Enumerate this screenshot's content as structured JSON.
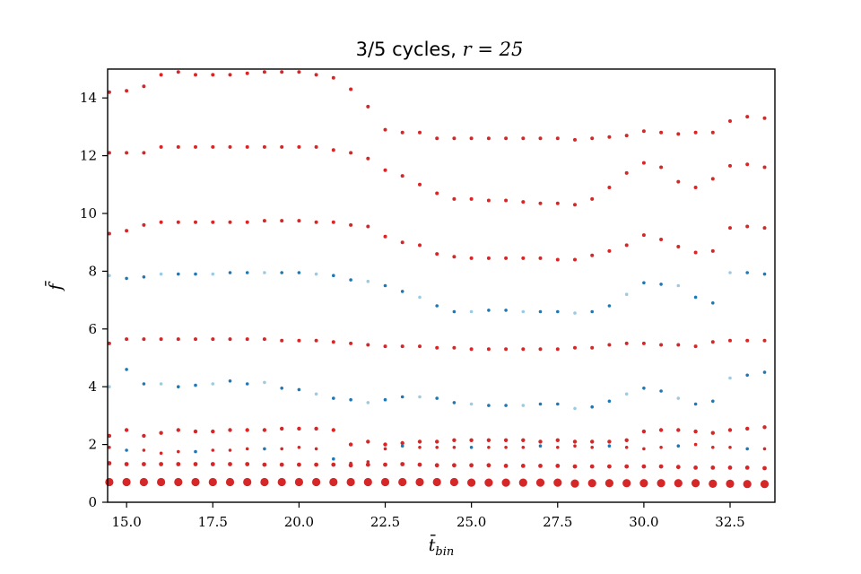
{
  "chart_data": {
    "type": "scatter",
    "title_text": "3/5 cycles, ",
    "title_math": "r = 25",
    "xlabel": "t̄",
    "xlabel_sub": "bin",
    "ylabel": "f̄",
    "xlim": [
      14.45,
      33.8
    ],
    "ylim": [
      0,
      15
    ],
    "xticks": [
      "15.0",
      "17.5",
      "20.0",
      "22.5",
      "25.0",
      "27.5",
      "30.0",
      "32.5"
    ],
    "yticks": [
      "0",
      "2",
      "4",
      "6",
      "8",
      "10",
      "12",
      "14"
    ],
    "grid": false,
    "legend": "none",
    "colors": {
      "high": "#d62728",
      "mid": "#1f77b4",
      "low": "#9ecae1"
    },
    "x": [
      14.5,
      15.0,
      15.5,
      16.0,
      16.5,
      17.0,
      17.5,
      18.0,
      18.5,
      19.0,
      19.5,
      20.0,
      20.5,
      21.0,
      21.5,
      22.0,
      22.5,
      23.0,
      23.5,
      24.0,
      24.5,
      25.0,
      25.5,
      26.0,
      26.5,
      27.0,
      27.5,
      28.0,
      28.5,
      29.0,
      29.5,
      30.0,
      30.5,
      31.0,
      31.5,
      32.0,
      32.5,
      33.0,
      33.5
    ],
    "series": [
      {
        "values": [
          0.7,
          0.7,
          0.7,
          0.7,
          0.7,
          0.7,
          0.7,
          0.7,
          0.7,
          0.7,
          0.7,
          0.7,
          0.7,
          0.7,
          0.7,
          0.7,
          0.7,
          0.7,
          0.7,
          0.7,
          0.7,
          0.68,
          0.68,
          0.68,
          0.68,
          0.68,
          0.68,
          0.65,
          0.66,
          0.66,
          0.66,
          0.66,
          0.66,
          0.66,
          0.66,
          0.64,
          0.64,
          0.63,
          0.63
        ],
        "level": "high",
        "size": 4.6
      },
      {
        "values": [
          1.35,
          1.32,
          1.32,
          1.32,
          1.32,
          1.32,
          1.32,
          1.32,
          1.32,
          1.3,
          1.3,
          1.3,
          1.3,
          1.3,
          1.28,
          1.3,
          1.3,
          1.32,
          1.3,
          1.28,
          1.28,
          1.28,
          1.28,
          1.26,
          1.26,
          1.26,
          1.26,
          1.24,
          1.24,
          1.24,
          1.24,
          1.24,
          1.24,
          1.22,
          1.2,
          1.2,
          1.2,
          1.2,
          1.18
        ],
        "level": "high",
        "size": 2.4
      },
      {
        "values": [
          2.3,
          2.5,
          2.3,
          2.4,
          2.5,
          2.45,
          2.45,
          2.5,
          2.5,
          2.5,
          2.55,
          2.55,
          2.55,
          2.5,
          2.0,
          2.1,
          2.0,
          2.05,
          2.1,
          2.1,
          2.15,
          2.15,
          2.15,
          2.15,
          2.15,
          2.1,
          2.15,
          2.1,
          2.1,
          2.1,
          2.15,
          2.45,
          2.5,
          2.5,
          2.45,
          2.4,
          2.5,
          2.55,
          2.6
        ],
        "level": "high",
        "size": 2.2
      },
      {
        "values": [
          5.5,
          5.65,
          5.65,
          5.65,
          5.65,
          5.65,
          5.65,
          5.65,
          5.65,
          5.65,
          5.6,
          5.6,
          5.6,
          5.55,
          5.5,
          5.45,
          5.4,
          5.4,
          5.4,
          5.35,
          5.35,
          5.3,
          5.3,
          5.3,
          5.3,
          5.3,
          5.3,
          5.35,
          5.35,
          5.45,
          5.5,
          5.5,
          5.45,
          5.45,
          5.4,
          5.55,
          5.6,
          5.6,
          5.6
        ],
        "level": "high",
        "size": 2.0
      },
      {
        "values": [
          7.85,
          7.75,
          7.8,
          7.9,
          7.9,
          7.9,
          7.9,
          7.95,
          7.95,
          7.95,
          7.95,
          7.95,
          7.9,
          7.85,
          7.7,
          7.65,
          7.5,
          7.3,
          7.1,
          6.8,
          6.6,
          6.6,
          6.65,
          6.65,
          6.6,
          6.6,
          6.6,
          6.55,
          6.6,
          6.8,
          7.2,
          7.6,
          7.55,
          7.5,
          7.1,
          6.9,
          7.95,
          7.95,
          7.9
        ],
        "level": "mid",
        "size": 1.8
      },
      {
        "values": [
          9.3,
          9.4,
          9.6,
          9.7,
          9.7,
          9.7,
          9.7,
          9.7,
          9.7,
          9.75,
          9.75,
          9.75,
          9.7,
          9.7,
          9.6,
          9.55,
          9.2,
          9.0,
          8.9,
          8.6,
          8.5,
          8.45,
          8.45,
          8.45,
          8.45,
          8.45,
          8.4,
          8.4,
          8.55,
          8.7,
          8.9,
          9.25,
          9.1,
          8.85,
          8.65,
          8.7,
          9.5,
          9.55,
          9.5
        ],
        "level": "high",
        "size": 2.0
      },
      {
        "values": [
          12.1,
          12.1,
          12.1,
          12.3,
          12.3,
          12.3,
          12.3,
          12.3,
          12.3,
          12.3,
          12.3,
          12.3,
          12.3,
          12.2,
          12.1,
          11.9,
          11.5,
          11.3,
          11.0,
          10.7,
          10.5,
          10.5,
          10.45,
          10.45,
          10.4,
          10.35,
          10.35,
          10.3,
          10.5,
          10.9,
          11.4,
          11.75,
          11.6,
          11.1,
          10.9,
          11.2,
          11.65,
          11.7,
          11.6
        ],
        "level": "high",
        "size": 2.0
      },
      {
        "values": [
          14.2,
          14.25,
          14.4,
          14.8,
          14.9,
          14.8,
          14.8,
          14.8,
          14.85,
          14.9,
          14.9,
          14.9,
          14.8,
          14.7,
          14.3,
          13.7,
          12.9,
          12.8,
          12.8,
          12.6,
          12.6,
          12.6,
          12.6,
          12.6,
          12.6,
          12.6,
          12.6,
          12.55,
          12.6,
          12.65,
          12.7,
          12.85,
          12.8,
          12.75,
          12.8,
          12.8,
          13.2,
          13.35,
          13.3
        ],
        "level": "high",
        "size": 2.0
      },
      {
        "values": [
          4.0,
          4.6,
          4.1,
          4.1,
          4.0,
          4.05,
          4.1,
          4.2,
          4.1,
          4.15,
          3.95,
          3.9,
          3.75,
          3.6,
          3.55,
          3.45,
          3.55,
          3.65,
          3.65,
          3.6,
          3.45,
          3.4,
          3.35,
          3.35,
          3.35,
          3.4,
          3.4,
          3.25,
          3.3,
          3.5,
          3.75,
          3.95,
          3.85,
          3.6,
          3.4,
          3.5,
          4.3,
          4.4,
          4.5
        ],
        "level": "mid",
        "size": 1.8
      },
      {
        "values": [
          1.9,
          1.8,
          1.8,
          1.7,
          1.75,
          1.75,
          1.8,
          1.8,
          1.85,
          1.85,
          1.85,
          1.9,
          1.85,
          1.5,
          1.35,
          1.4,
          1.85,
          1.95,
          1.9,
          1.9,
          1.9,
          1.9,
          1.9,
          1.9,
          1.9,
          1.95,
          1.9,
          1.95,
          1.9,
          1.95,
          1.9,
          1.85,
          1.9,
          1.95,
          2.0,
          1.9,
          1.9,
          1.85,
          1.85
        ],
        "level": "mixed",
        "size": 1.8
      }
    ]
  }
}
